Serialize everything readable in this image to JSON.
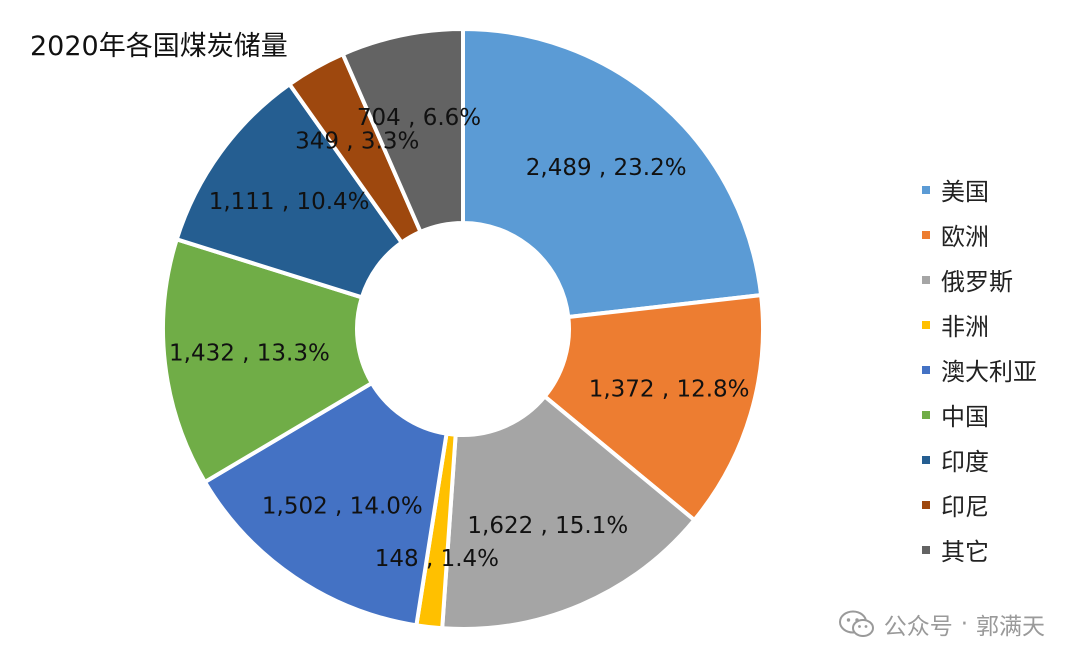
{
  "chart_data": {
    "type": "pie",
    "title": "2020年各国煤炭储量",
    "categories": [
      "美国",
      "欧洲",
      "俄罗斯",
      "非洲",
      "澳大利亚",
      "中国",
      "印度",
      "印尼",
      "其它"
    ],
    "values": [
      2489,
      1372,
      1622,
      148,
      1502,
      1432,
      1111,
      349,
      704
    ],
    "percents": [
      "23.2%",
      "12.8%",
      "15.1%",
      "1.4%",
      "14.0%",
      "13.3%",
      "10.4%",
      "3.3%",
      "6.6%"
    ],
    "data_labels": [
      "2,489 , 23.2%",
      "1,372 , 12.8%",
      "1,622 , 15.1%",
      "148 , 1.4%",
      "1,502 , 14.0%",
      "1,432 , 13.3%",
      "1,111 , 10.4%",
      "349 , 3.3%",
      "704 , 6.6%"
    ],
    "colors": [
      "#5b9bd5",
      "#ed7d31",
      "#a5a5a5",
      "#ffc000",
      "#4472c4",
      "#70ad47",
      "#255e91",
      "#9e480e",
      "#636363"
    ],
    "donut": true,
    "legend_position": "right"
  },
  "watermark": {
    "icon": "wechat-icon",
    "text_left": "公众号",
    "separator": "·",
    "text_right": "郭满天"
  }
}
